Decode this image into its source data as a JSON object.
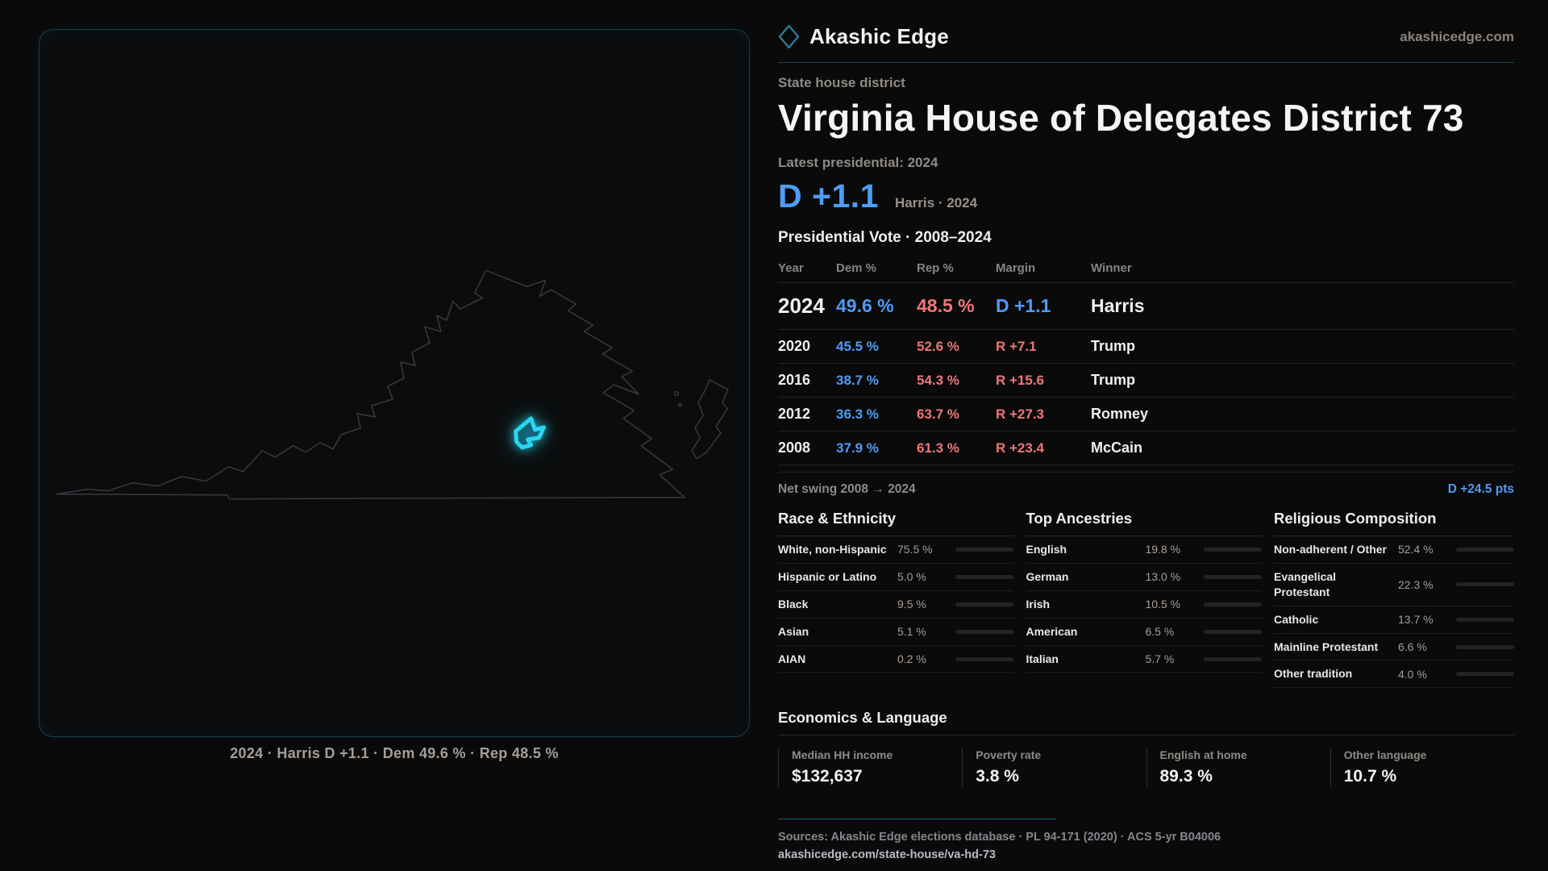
{
  "brand": {
    "name": "Akashic Edge",
    "domain": "akashicedge.com"
  },
  "page": {
    "kicker": "State house district",
    "title": "Virginia House of Delegates District 73",
    "latest_label": "Latest presidential: 2024",
    "headline_margin": "D +1.1",
    "headline_context": "Harris · 2024",
    "table_title": "Presidential Vote · 2008–2024"
  },
  "table": {
    "columns": [
      "Year",
      "Dem %",
      "Rep %",
      "Margin",
      "Winner"
    ],
    "rows": [
      {
        "year": "2024",
        "dem": "49.6 %",
        "rep": "48.5 %",
        "margin": "D +1.1",
        "margin_party": "D",
        "winner": "Harris"
      },
      {
        "year": "2020",
        "dem": "45.5 %",
        "rep": "52.6 %",
        "margin": "R +7.1",
        "margin_party": "R",
        "winner": "Trump"
      },
      {
        "year": "2016",
        "dem": "38.7 %",
        "rep": "54.3 %",
        "margin": "R +15.6",
        "margin_party": "R",
        "winner": "Trump"
      },
      {
        "year": "2012",
        "dem": "36.3 %",
        "rep": "63.7 %",
        "margin": "R +27.3",
        "margin_party": "R",
        "winner": "Romney"
      },
      {
        "year": "2008",
        "dem": "37.9 %",
        "rep": "61.3 %",
        "margin": "R +23.4",
        "margin_party": "R",
        "winner": "McCain"
      }
    ]
  },
  "net_swing": {
    "label": "Net swing 2008 → 2024",
    "value": "D +24.5 pts"
  },
  "sections": {
    "race": {
      "title": "Race & Ethnicity",
      "rows": [
        {
          "label": "White, non-Hispanic",
          "value": "75.5 %",
          "pct": 75.5,
          "color": "#9db1c9"
        },
        {
          "label": "Hispanic or Latino",
          "value": "5.0 %",
          "pct": 5.0,
          "color": "#e2a23f"
        },
        {
          "label": "Black",
          "value": "9.5 %",
          "pct": 9.5,
          "color": "#8d80ee"
        },
        {
          "label": "Asian",
          "value": "5.1 %",
          "pct": 5.1,
          "color": "#2fc29b"
        },
        {
          "label": "AIAN",
          "value": "0.2 %",
          "pct": 0.2,
          "color": "#8a97a8"
        }
      ]
    },
    "ancestries": {
      "title": "Top Ancestries",
      "rows": [
        {
          "label": "English",
          "value": "19.8 %",
          "pct": 19.8,
          "color": "#9db1c9"
        },
        {
          "label": "German",
          "value": "13.0 %",
          "pct": 13.0,
          "color": "#9db1c9"
        },
        {
          "label": "Irish",
          "value": "10.5 %",
          "pct": 10.5,
          "color": "#9db1c9"
        },
        {
          "label": "American",
          "value": "6.5 %",
          "pct": 6.5,
          "color": "#9db1c9"
        },
        {
          "label": "Italian",
          "value": "5.7 %",
          "pct": 5.7,
          "color": "#9db1c9"
        }
      ]
    },
    "religion": {
      "title": "Religious Composition",
      "rows": [
        {
          "label": "Non-adherent / Other",
          "value": "52.4 %",
          "pct": 52.4,
          "color": "#7f8da3"
        },
        {
          "label": "Evangelical Protestant",
          "value": "22.3 %",
          "pct": 22.3,
          "color": "#e0696f"
        },
        {
          "label": "Catholic",
          "value": "13.7 %",
          "pct": 13.7,
          "color": "#e7b03c"
        },
        {
          "label": "Mainline Protestant",
          "value": "6.6 %",
          "pct": 6.6,
          "color": "#4f9cf5"
        },
        {
          "label": "Other tradition",
          "value": "4.0 %",
          "pct": 4.0,
          "color": "#c8ccd4"
        }
      ]
    }
  },
  "economics": {
    "title": "Economics & Language",
    "stats": [
      {
        "label": "Median HH income",
        "value": "$132,637"
      },
      {
        "label": "Poverty rate",
        "value": "3.8 %"
      },
      {
        "label": "English at home",
        "value": "89.3 %"
      },
      {
        "label": "Other language",
        "value": "10.7 %"
      }
    ]
  },
  "footer": {
    "sources": "Sources: Akashic Edge elections database · PL 94-171 (2020) · ACS 5-yr B04006",
    "permalink": "akashicedge.com/state-house/va-hd-73"
  },
  "map": {
    "caption": "2024 · Harris D +1.1 · Dem 49.6 % · Rep 48.5 %"
  },
  "colors": {
    "dem_blue": "#4f9cf5",
    "rep_red": "#ef7676",
    "district_glow": "#28d6f2",
    "accent_teal": "#1c4653"
  }
}
